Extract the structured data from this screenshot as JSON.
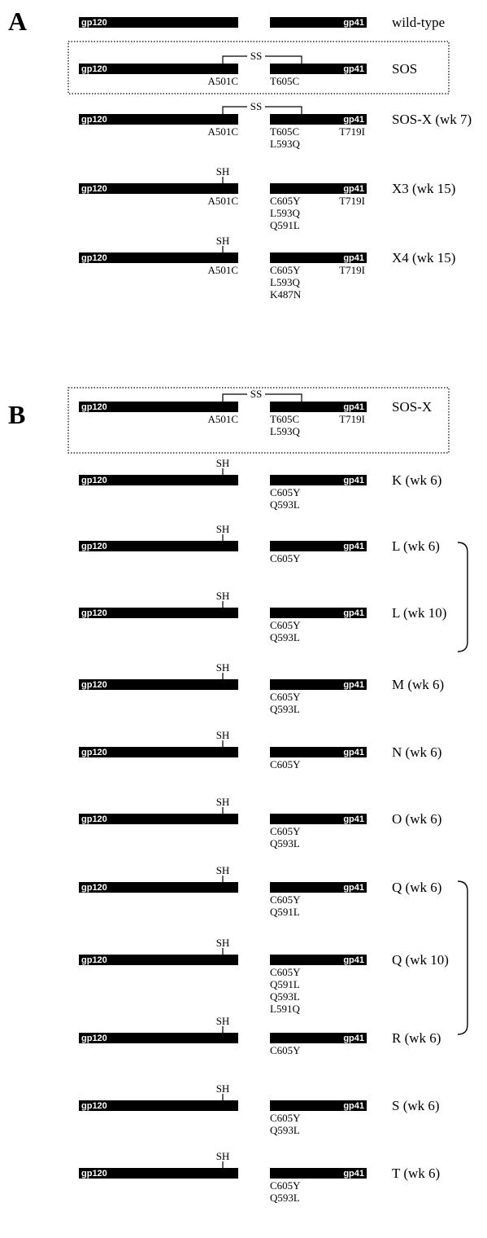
{
  "panels": {
    "A": {
      "label": "A",
      "constructs": [
        {
          "name": "wild-type",
          "bond": "",
          "gp120_mutations": [],
          "gp41_mutations": [],
          "tail_mutations": [],
          "boxed": false
        },
        {
          "name": "SOS",
          "bond": "SS",
          "gp120_mutations": [
            "A501C"
          ],
          "gp41_mutations": [
            "T605C"
          ],
          "tail_mutations": [],
          "boxed": true
        },
        {
          "name": "SOS-X (wk 7)",
          "bond": "SS",
          "gp120_mutations": [
            "A501C"
          ],
          "gp41_mutations": [
            "T605C",
            "L593Q"
          ],
          "tail_mutations": [
            "T719I"
          ],
          "boxed": false
        },
        {
          "name": "X3 (wk 15)",
          "bond": "SH",
          "gp120_mutations": [
            "A501C"
          ],
          "gp41_mutations": [
            "C605Y",
            "L593Q",
            "Q591L"
          ],
          "tail_mutations": [
            "T719I"
          ],
          "boxed": false
        },
        {
          "name": "X4 (wk 15)",
          "bond": "SH",
          "gp120_mutations": [
            "A501C"
          ],
          "gp41_mutations": [
            "C605Y",
            "L593Q",
            "K487N"
          ],
          "tail_mutations": [
            "T719I"
          ],
          "boxed": false
        }
      ]
    },
    "B": {
      "label": "B",
      "constructs": [
        {
          "name": "SOS-X",
          "bond": "SS",
          "gp120_mutations": [
            "A501C"
          ],
          "gp41_mutations": [
            "T605C",
            "L593Q"
          ],
          "tail_mutations": [
            "T719I"
          ],
          "boxed": true
        },
        {
          "name": "K (wk 6)",
          "bond": "SH",
          "gp120_mutations": [],
          "gp41_mutations": [
            "C605Y",
            "Q593L"
          ],
          "tail_mutations": []
        },
        {
          "name": "L (wk 6)",
          "bond": "SH",
          "gp120_mutations": [],
          "gp41_mutations": [
            "C605Y"
          ],
          "tail_mutations": []
        },
        {
          "name": "L (wk 10)",
          "bond": "SH",
          "gp120_mutations": [],
          "gp41_mutations": [
            "C605Y",
            "Q593L"
          ],
          "tail_mutations": []
        },
        {
          "name": "M (wk 6)",
          "bond": "SH",
          "gp120_mutations": [],
          "gp41_mutations": [
            "C605Y",
            "Q593L"
          ],
          "tail_mutations": []
        },
        {
          "name": "N (wk 6)",
          "bond": "SH",
          "gp120_mutations": [],
          "gp41_mutations": [
            "C605Y"
          ],
          "tail_mutations": []
        },
        {
          "name": "O (wk 6)",
          "bond": "SH",
          "gp120_mutations": [],
          "gp41_mutations": [
            "C605Y",
            "Q593L"
          ],
          "tail_mutations": []
        },
        {
          "name": "Q (wk 6)",
          "bond": "SH",
          "gp120_mutations": [],
          "gp41_mutations": [
            "C605Y",
            "Q591L"
          ],
          "tail_mutations": []
        },
        {
          "name": "Q (wk 10)",
          "bond": "SH",
          "gp120_mutations": [],
          "gp41_mutations": [
            "C605Y",
            "Q591L",
            "Q593L",
            "L591Q"
          ],
          "tail_mutations": []
        },
        {
          "name": "R (wk 6)",
          "bond": "SH",
          "gp120_mutations": [],
          "gp41_mutations": [
            "C605Y"
          ],
          "tail_mutations": []
        },
        {
          "name": "S (wk 6)",
          "bond": "SH",
          "gp120_mutations": [],
          "gp41_mutations": [
            "C605Y",
            "Q593L"
          ],
          "tail_mutations": []
        },
        {
          "name": "T (wk 6)",
          "bond": "SH",
          "gp120_mutations": [],
          "gp41_mutations": [
            "C605Y",
            "Q593L"
          ],
          "tail_mutations": []
        }
      ]
    }
  },
  "bar_labels": {
    "gp120": "gp120",
    "gp41": "gp41"
  },
  "colors": {
    "bar": "#000000",
    "bar_text": "#ffffff",
    "background": "#ffffff"
  }
}
